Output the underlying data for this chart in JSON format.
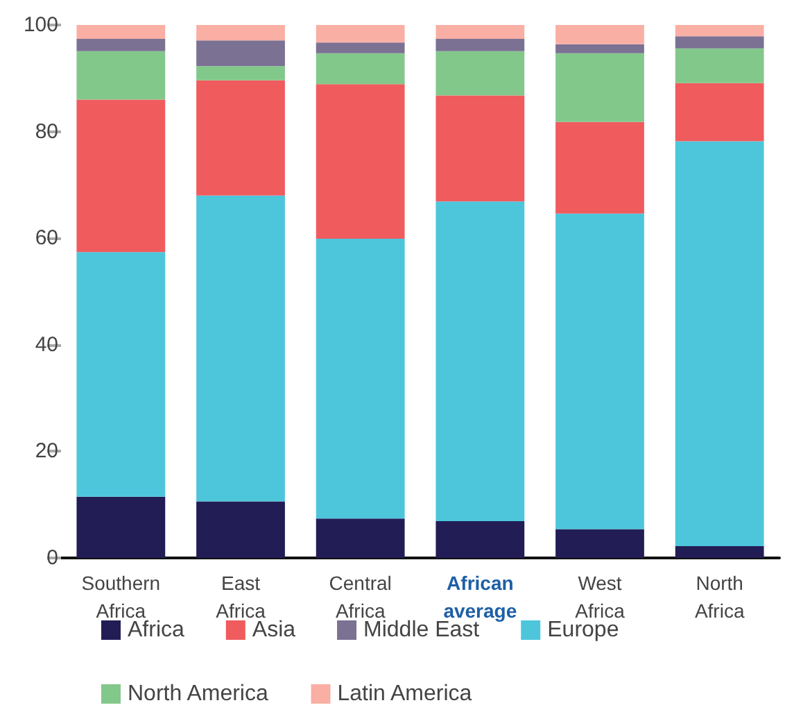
{
  "chart_data": {
    "type": "bar",
    "stacked": true,
    "categories": [
      "Southern\nAfrica",
      "East\nAfrica",
      "Central\nAfrica",
      "African\naverage",
      "West\nAfrica",
      "North\nAfrica"
    ],
    "series": [
      {
        "name": "Africa",
        "color": "#221d55",
        "values": [
          11.5,
          10.6,
          7.4,
          6.9,
          5.4,
          2.2
        ]
      },
      {
        "name": "Europe",
        "color": "#4dc6dc",
        "values": [
          45.9,
          57.4,
          52.5,
          60.0,
          59.2,
          76.0
        ]
      },
      {
        "name": "Asia",
        "color": "#f05b5e",
        "values": [
          28.6,
          21.6,
          29.0,
          19.9,
          17.2,
          10.9
        ]
      },
      {
        "name": "North America",
        "color": "#83c88b",
        "values": [
          9.1,
          2.7,
          5.8,
          8.3,
          12.9,
          6.5
        ]
      },
      {
        "name": "Middle East",
        "color": "#7b7193",
        "values": [
          2.3,
          4.8,
          2.0,
          2.3,
          1.7,
          2.3
        ]
      },
      {
        "name": "Latin America",
        "color": "#f9afa4",
        "values": [
          2.6,
          2.9,
          3.3,
          2.6,
          3.6,
          2.1
        ]
      }
    ],
    "ylim": [
      0,
      100
    ],
    "yticks": [
      0,
      20,
      40,
      60,
      80,
      100
    ],
    "grid": false,
    "legend": "bottom"
  }
}
